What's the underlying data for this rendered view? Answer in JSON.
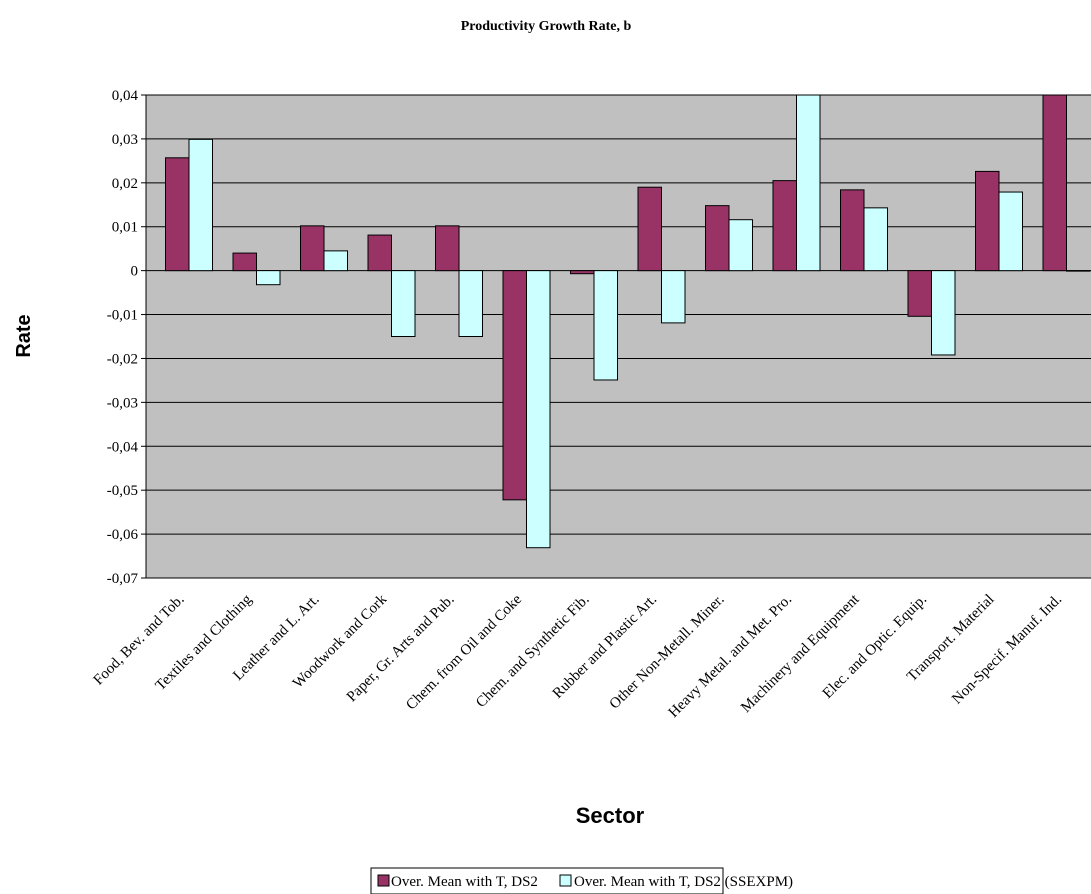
{
  "chart_data": {
    "type": "bar",
    "title": "Productivity Growth Rate, b",
    "xlabel": "Sector",
    "ylabel": "Rate",
    "ylim": [
      -0.07,
      0.04
    ],
    "yticks": [
      "0,04",
      "0,03",
      "0,02",
      "0,01",
      "0",
      "-0,01",
      "-0,02",
      "-0,03",
      "-0,04",
      "-0,05",
      "-0,06",
      "-0,07"
    ],
    "grid": true,
    "legend_position": "bottom",
    "categories": [
      "Food, Bev. and Tob.",
      "Textiles and Clothing",
      "Leather and L. Art.",
      "Woodwork and Cork",
      "Paper, Gr. Arts and Pub.",
      "Chem. from Oil and Coke",
      "Chem. and Synthetic Fib.",
      "Rubber and Plastic Art.",
      "Other Non-Metall. Miner.",
      "Heavy Metal. and Met. Pro.",
      "Machinery and Equipment",
      "Elec. and Optic. Equip.",
      "Transport. Material",
      "Non-Specif. Manuf. Ind."
    ],
    "series": [
      {
        "name": "Over. Mean with T, DS2",
        "color": "#993366",
        "values": [
          0.0257,
          0.004,
          0.0102,
          0.0081,
          0.0102,
          -0.0522,
          -0.0007,
          0.019,
          0.0148,
          0.0205,
          0.0184,
          -0.0104,
          0.0226,
          0.045
        ]
      },
      {
        "name": "Over. Mean with T, DS2 (SSEXPM)",
        "color": "#ccffff",
        "values": [
          0.0299,
          -0.0032,
          0.0045,
          -0.015,
          -0.015,
          -0.0631,
          -0.0249,
          -0.0119,
          0.0116,
          0.045,
          0.0143,
          -0.0192,
          0.0179,
          -0.0001
        ]
      }
    ],
    "plot_background": "#c0c0c0"
  }
}
